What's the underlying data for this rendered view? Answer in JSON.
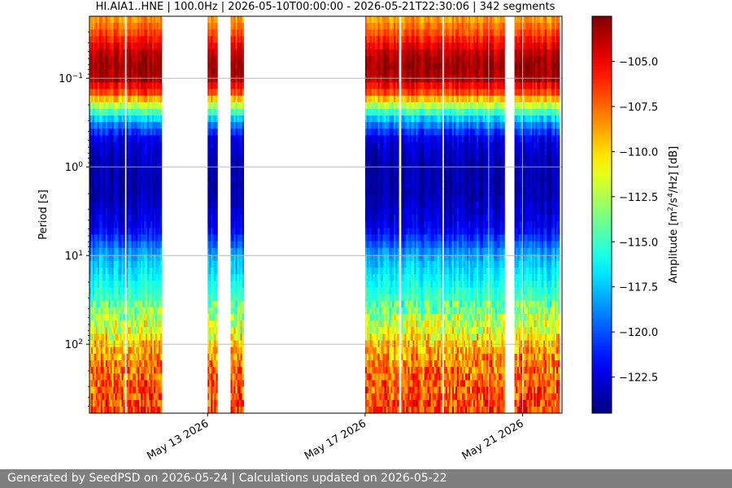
{
  "chart_data": {
    "type": "heatmap",
    "title": "HI.AIA1..HNE | 100.0Hz | 2026-05-10T00:00:00 - 2026-05-21T22:30:06 | 342 segments",
    "xlabel": "",
    "ylabel": "Period [s]",
    "colorbar_label_parts": [
      "Amplitude [m",
      "2",
      "/s",
      "4",
      "/Hz] [dB]"
    ],
    "y_scale": "log",
    "y_inverted": true,
    "ylim": [
      0.02,
      600
    ],
    "y_ticks": [
      {
        "value": 0.1,
        "base": "10",
        "exp": "−1"
      },
      {
        "value": 1,
        "base": "10",
        "exp": "0"
      },
      {
        "value": 10,
        "base": "10",
        "exp": "1"
      },
      {
        "value": 100,
        "base": "10",
        "exp": "2"
      }
    ],
    "xlim": [
      "2026-05-10T00:00",
      "2026-05-22T00:00"
    ],
    "x_ticks": [
      {
        "value": "2026-05-13",
        "label": "May 13 2026"
      },
      {
        "value": "2026-05-17",
        "label": "May 17 2026"
      },
      {
        "value": "2026-05-21",
        "label": "May 21 2026"
      }
    ],
    "grid": "horizontal",
    "colormap": "jet",
    "color_range": [
      -124.5,
      -102.5
    ],
    "colorbar_ticks": [
      "−105.0",
      "−107.5",
      "−110.0",
      "−112.5",
      "−115.0",
      "−117.5",
      "−120.0",
      "−122.5"
    ],
    "colorbar_tick_values": [
      -105.0,
      -107.5,
      -110.0,
      -112.5,
      -115.0,
      -117.5,
      -120.0,
      -122.5
    ],
    "data_segments": [
      {
        "start": "2026-05-10T00:00",
        "end": "2026-05-10T21:30"
      },
      {
        "start": "2026-05-10T22:30",
        "end": "2026-05-11T20:00"
      },
      {
        "start": "2026-05-13T00:00",
        "end": "2026-05-13T06:00"
      },
      {
        "start": "2026-05-13T14:00",
        "end": "2026-05-13T22:00"
      },
      {
        "start": "2026-05-17T00:00",
        "end": "2026-05-17T20:30"
      },
      {
        "start": "2026-05-17T22:00",
        "end": "2026-05-18T23:00"
      },
      {
        "start": "2026-05-19T00:00",
        "end": "2026-05-20T03:00"
      },
      {
        "start": "2026-05-20T03:30",
        "end": "2026-05-20T13:00"
      },
      {
        "start": "2026-05-20T19:00",
        "end": "2026-05-20T23:30"
      },
      {
        "start": "2026-05-21T00:00",
        "end": "2026-05-21T22:30"
      }
    ],
    "spectral_profile": {
      "period": [
        0.02,
        0.03,
        0.05,
        0.07,
        0.1,
        0.15,
        0.2,
        0.3,
        0.5,
        1,
        2,
        5,
        10,
        20,
        40,
        70,
        100,
        200,
        600
      ],
      "amplitude_db": [
        -109,
        -107,
        -104,
        -103,
        -103.5,
        -107,
        -112,
        -118,
        -122.5,
        -123.5,
        -123.5,
        -122,
        -118,
        -116,
        -114,
        -112,
        -110,
        -108,
        -107
      ]
    }
  },
  "footer": {
    "text": "Generated by SeedPSD on 2026-05-24 | Calculations updated on 2026-05-22"
  }
}
